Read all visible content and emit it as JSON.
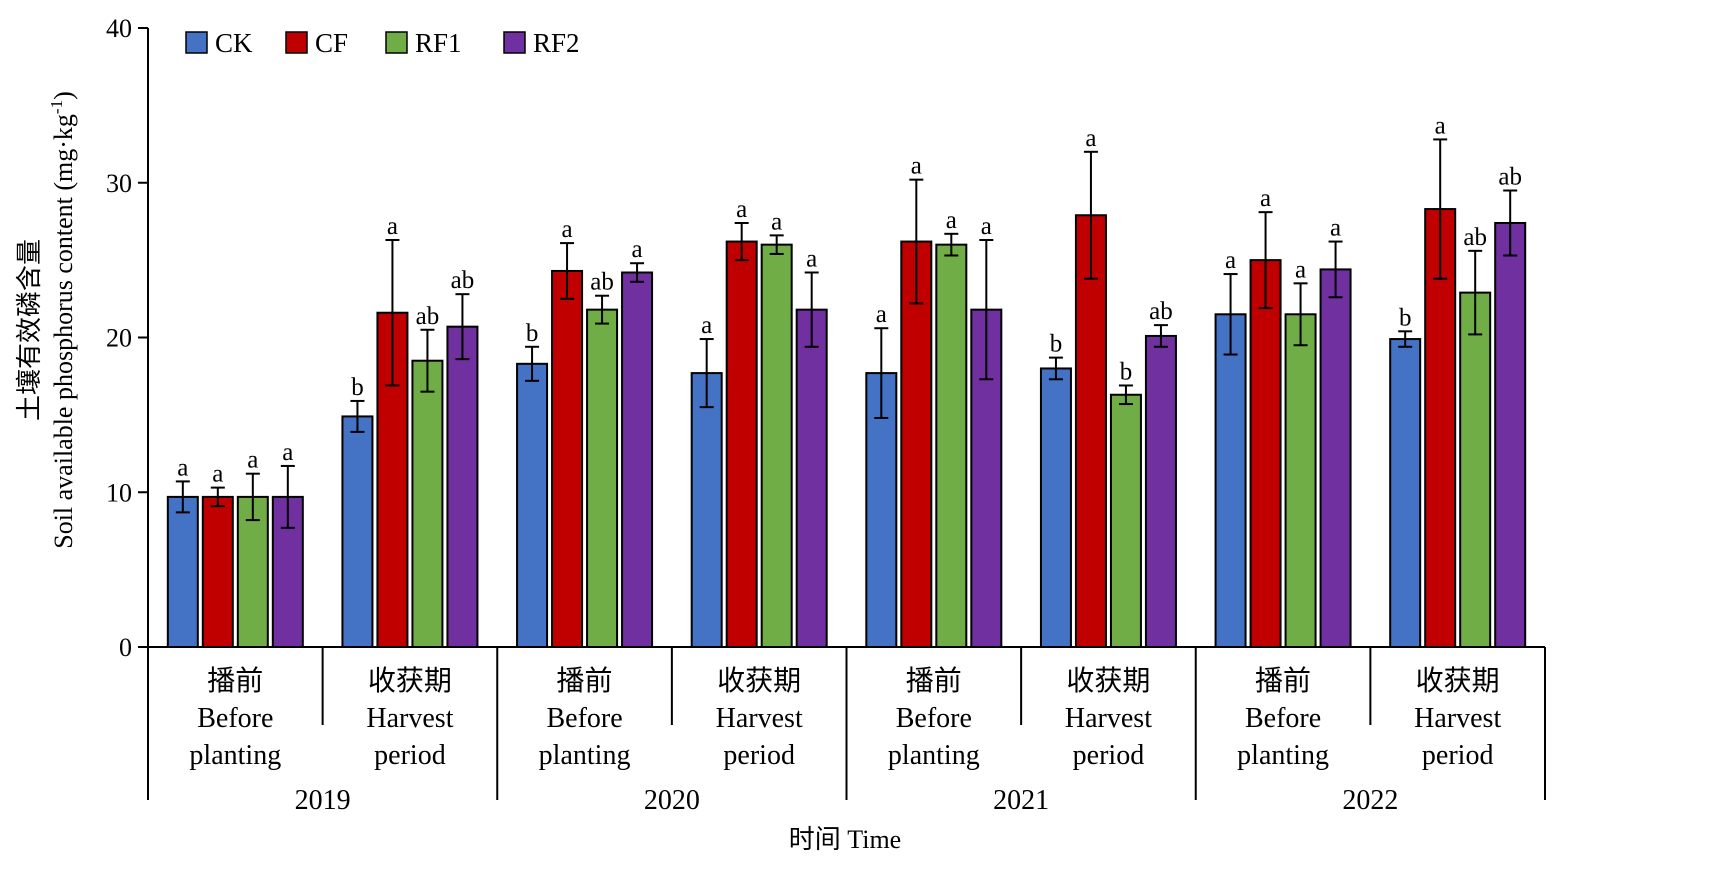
{
  "chart_data": {
    "type": "bar",
    "ylabel_cn": "土壤有效磷含量",
    "ylabel_en": "Soil available phosphorus content (mg·kg",
    "ylabel_sup": "-1",
    "ylabel_close": ")",
    "xlabel": "时间 Time",
    "ylim": [
      0,
      40
    ],
    "yticks": [
      "0",
      "10",
      "20",
      "30",
      "40"
    ],
    "grid": false,
    "legend_position": "top-left",
    "groups": [
      {
        "cn": "播前",
        "en1": "Before",
        "en2": "planting"
      },
      {
        "cn": "收获期",
        "en1": "Harvest",
        "en2": "period"
      },
      {
        "cn": "播前",
        "en1": "Before",
        "en2": "planting"
      },
      {
        "cn": "收获期",
        "en1": "Harvest",
        "en2": "period"
      },
      {
        "cn": "播前",
        "en1": "Before",
        "en2": "planting"
      },
      {
        "cn": "收获期",
        "en1": "Harvest",
        "en2": "period"
      },
      {
        "cn": "播前",
        "en1": "Before",
        "en2": "planting"
      },
      {
        "cn": "收获期",
        "en1": "Harvest",
        "en2": "period"
      }
    ],
    "years": [
      "2019",
      "2020",
      "2021",
      "2022"
    ],
    "series": [
      {
        "name": "CK",
        "color": "#4472C4",
        "values": [
          9.7,
          14.9,
          18.3,
          17.7,
          17.7,
          18.0,
          21.5,
          19.9
        ],
        "errors": [
          1.0,
          1.0,
          1.1,
          2.2,
          2.9,
          0.7,
          2.6,
          0.5
        ],
        "labels": [
          "a",
          "b",
          "b",
          "a",
          "a",
          "b",
          "a",
          "b"
        ]
      },
      {
        "name": "CF",
        "color": "#C00000",
        "values": [
          9.7,
          21.6,
          24.3,
          26.2,
          26.2,
          27.9,
          25.0,
          28.3
        ],
        "errors": [
          0.6,
          4.7,
          1.8,
          1.2,
          4.0,
          4.1,
          3.1,
          4.5
        ],
        "labels": [
          "a",
          "a",
          "a",
          "a",
          "a",
          "a",
          "a",
          "a"
        ]
      },
      {
        "name": "RF1",
        "color": "#70AD47",
        "values": [
          9.7,
          18.5,
          21.8,
          26.0,
          26.0,
          16.3,
          21.5,
          22.9
        ],
        "errors": [
          1.5,
          2.0,
          0.9,
          0.6,
          0.7,
          0.6,
          2.0,
          2.7
        ],
        "labels": [
          "a",
          "ab",
          "ab",
          "a",
          "a",
          "b",
          "a",
          "ab"
        ]
      },
      {
        "name": "RF2",
        "color": "#7030A0",
        "values": [
          9.7,
          20.7,
          24.2,
          21.8,
          21.8,
          20.1,
          24.4,
          27.4
        ],
        "errors": [
          2.0,
          2.1,
          0.6,
          2.4,
          4.5,
          0.7,
          1.8,
          2.1
        ],
        "labels": [
          "a",
          "ab",
          "a",
          "a",
          "a",
          "ab",
          "a",
          "ab"
        ]
      }
    ]
  }
}
